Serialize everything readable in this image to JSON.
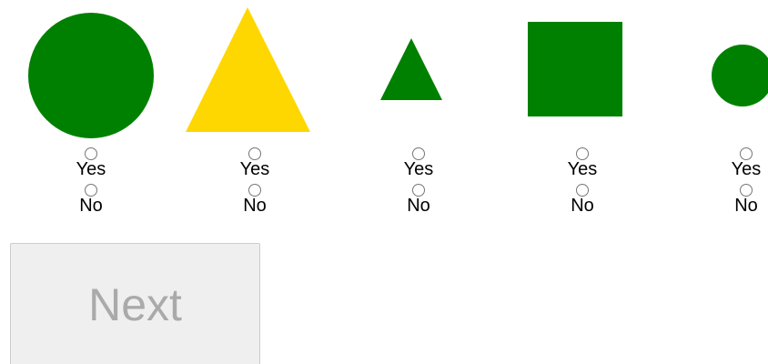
{
  "items": [
    {
      "options": [
        "Yes",
        "No"
      ]
    },
    {
      "options": [
        "Yes",
        "No"
      ]
    },
    {
      "options": [
        "Yes",
        "No"
      ]
    },
    {
      "options": [
        "Yes",
        "No"
      ]
    },
    {
      "options": [
        "Yes",
        "No"
      ]
    }
  ],
  "button": "Next"
}
